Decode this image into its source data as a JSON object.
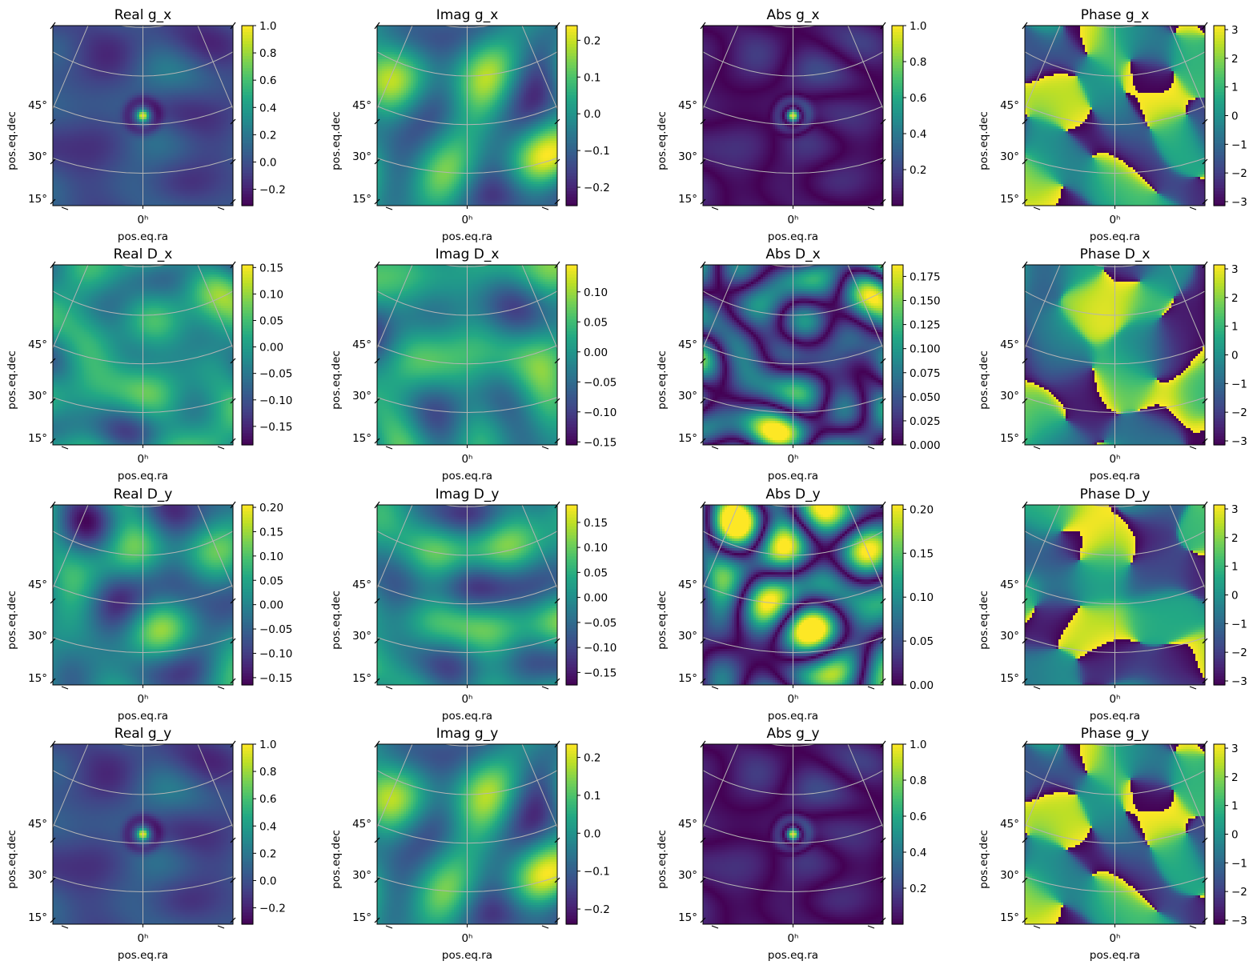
{
  "chart_data": {
    "type": "heatmap",
    "figure_rows": [
      {
        "panels": [
          {
            "title": "Real g_x",
            "kind": "real",
            "peak": 1.0,
            "seed": 11,
            "colorbar": {
              "range": [
                -0.32,
                1.0
              ],
              "ticks": [
                -0.2,
                0.0,
                0.2,
                0.4,
                0.6,
                0.8,
                1.0
              ],
              "tick_labels": [
                "−0.2",
                "0.0",
                "0.2",
                "0.4",
                "0.6",
                "0.8",
                "1.0"
              ]
            }
          },
          {
            "title": "Imag g_x",
            "kind": "imag",
            "peak": 0.0,
            "seed": 23,
            "colorbar": {
              "range": [
                -0.25,
                0.24
              ],
              "ticks": [
                -0.2,
                -0.1,
                0.0,
                0.1,
                0.2
              ],
              "tick_labels": [
                "−0.2",
                "−0.1",
                "0.0",
                "0.1",
                "0.2"
              ]
            }
          },
          {
            "title": "Abs g_x",
            "kind": "abs",
            "peak": 1.0,
            "seed": 11,
            "colorbar": {
              "range": [
                0.0,
                1.0
              ],
              "ticks": [
                0.2,
                0.4,
                0.6,
                0.8,
                1.0
              ],
              "tick_labels": [
                "0.2",
                "0.4",
                "0.6",
                "0.8",
                "1.0"
              ]
            }
          },
          {
            "title": "Phase g_x",
            "kind": "phase",
            "peak": 0.0,
            "seed": 37,
            "colorbar": {
              "range": [
                -3.14,
                3.14
              ],
              "ticks": [
                -3,
                -2,
                -1,
                0,
                1,
                2,
                3
              ],
              "tick_labels": [
                "−3",
                "−2",
                "−1",
                "0",
                "1",
                "2",
                "3"
              ]
            }
          }
        ]
      },
      {
        "panels": [
          {
            "title": "Real D_x",
            "kind": "real",
            "peak": 0.0,
            "seed": 41,
            "colorbar": {
              "range": [
                -0.185,
                0.155
              ],
              "ticks": [
                -0.15,
                -0.1,
                -0.05,
                0.0,
                0.05,
                0.1,
                0.15
              ],
              "tick_labels": [
                "−0.15",
                "−0.10",
                "−0.05",
                "0.00",
                "0.05",
                "0.10",
                "0.15"
              ]
            }
          },
          {
            "title": "Imag D_x",
            "kind": "imag",
            "peak": 0.0,
            "seed": 53,
            "colorbar": {
              "range": [
                -0.155,
                0.145
              ],
              "ticks": [
                -0.15,
                -0.1,
                -0.05,
                0.0,
                0.05,
                0.1
              ],
              "tick_labels": [
                "−0.15",
                "−0.10",
                "−0.05",
                "0.00",
                "0.05",
                "0.10"
              ]
            }
          },
          {
            "title": "Abs D_x",
            "kind": "abs",
            "peak": 0.0,
            "seed": 41,
            "colorbar": {
              "range": [
                0.0,
                0.187
              ],
              "ticks": [
                0.0,
                0.025,
                0.05,
                0.075,
                0.1,
                0.125,
                0.15,
                0.175
              ],
              "tick_labels": [
                "0.000",
                "0.025",
                "0.050",
                "0.075",
                "0.100",
                "0.125",
                "0.150",
                "0.175"
              ]
            }
          },
          {
            "title": "Phase D_x",
            "kind": "phase",
            "peak": 0.0,
            "seed": 67,
            "colorbar": {
              "range": [
                -3.14,
                3.14
              ],
              "ticks": [
                -3,
                -2,
                -1,
                0,
                1,
                2,
                3
              ],
              "tick_labels": [
                "−3",
                "−2",
                "−1",
                "0",
                "1",
                "2",
                "3"
              ]
            }
          }
        ]
      },
      {
        "panels": [
          {
            "title": "Real D_y",
            "kind": "real",
            "peak": 0.0,
            "seed": 71,
            "colorbar": {
              "range": [
                -0.165,
                0.205
              ],
              "ticks": [
                -0.15,
                -0.1,
                -0.05,
                0.0,
                0.05,
                0.1,
                0.15,
                0.2
              ],
              "tick_labels": [
                "−0.15",
                "−0.10",
                "−0.05",
                "0.00",
                "0.05",
                "0.10",
                "0.15",
                "0.20"
              ]
            }
          },
          {
            "title": "Imag D_y",
            "kind": "imag",
            "peak": 0.0,
            "seed": 83,
            "colorbar": {
              "range": [
                -0.175,
                0.185
              ],
              "ticks": [
                -0.15,
                -0.1,
                -0.05,
                0.0,
                0.05,
                0.1,
                0.15
              ],
              "tick_labels": [
                "−0.15",
                "−0.10",
                "−0.05",
                "0.00",
                "0.05",
                "0.10",
                "0.15"
              ]
            }
          },
          {
            "title": "Abs D_y",
            "kind": "abs",
            "peak": 0.0,
            "seed": 71,
            "colorbar": {
              "range": [
                0.0,
                0.205
              ],
              "ticks": [
                0.0,
                0.05,
                0.1,
                0.15,
                0.2
              ],
              "tick_labels": [
                "0.00",
                "0.05",
                "0.10",
                "0.15",
                "0.20"
              ]
            }
          },
          {
            "title": "Phase D_y",
            "kind": "phase",
            "peak": 0.0,
            "seed": 97,
            "colorbar": {
              "range": [
                -3.14,
                3.14
              ],
              "ticks": [
                -3,
                -2,
                -1,
                0,
                1,
                2,
                3
              ],
              "tick_labels": [
                "−3",
                "−2",
                "−1",
                "0",
                "1",
                "2",
                "3"
              ]
            }
          }
        ]
      },
      {
        "panels": [
          {
            "title": "Real g_y",
            "kind": "real",
            "peak": 1.0,
            "seed": 11,
            "colorbar": {
              "range": [
                -0.32,
                1.0
              ],
              "ticks": [
                -0.2,
                0.0,
                0.2,
                0.4,
                0.6,
                0.8,
                1.0
              ],
              "tick_labels": [
                "−0.2",
                "0.0",
                "0.2",
                "0.4",
                "0.6",
                "0.8",
                "1.0"
              ]
            }
          },
          {
            "title": "Imag g_y",
            "kind": "imag",
            "peak": 0.0,
            "seed": 23,
            "colorbar": {
              "range": [
                -0.24,
                0.235
              ],
              "ticks": [
                -0.2,
                -0.1,
                0.0,
                0.1,
                0.2
              ],
              "tick_labels": [
                "−0.2",
                "−0.1",
                "0.0",
                "0.1",
                "0.2"
              ]
            }
          },
          {
            "title": "Abs g_y",
            "kind": "abs",
            "peak": 1.0,
            "seed": 11,
            "colorbar": {
              "range": [
                0.0,
                1.0
              ],
              "ticks": [
                0.2,
                0.4,
                0.6,
                0.8,
                1.0
              ],
              "tick_labels": [
                "0.2",
                "0.4",
                "0.6",
                "0.8",
                "1.0"
              ]
            }
          },
          {
            "title": "Phase g_y",
            "kind": "phase",
            "peak": 0.0,
            "seed": 37,
            "colorbar": {
              "range": [
                -3.14,
                3.14
              ],
              "ticks": [
                -3,
                -2,
                -1,
                0,
                1,
                2,
                3
              ],
              "tick_labels": [
                "−3",
                "−2",
                "−1",
                "0",
                "1",
                "2",
                "3"
              ]
            }
          }
        ]
      }
    ],
    "xlabel": "pos.eq.ra",
    "ylabel": "pos.eq.dec",
    "x_tick_label": "0ʰ",
    "y_tick_labels": [
      "45°",
      "30°",
      "15°"
    ],
    "dec_ticks": [
      45,
      30,
      15
    ],
    "colormap": "viridis",
    "grid": true,
    "grid_color": "#b4b4b4"
  }
}
